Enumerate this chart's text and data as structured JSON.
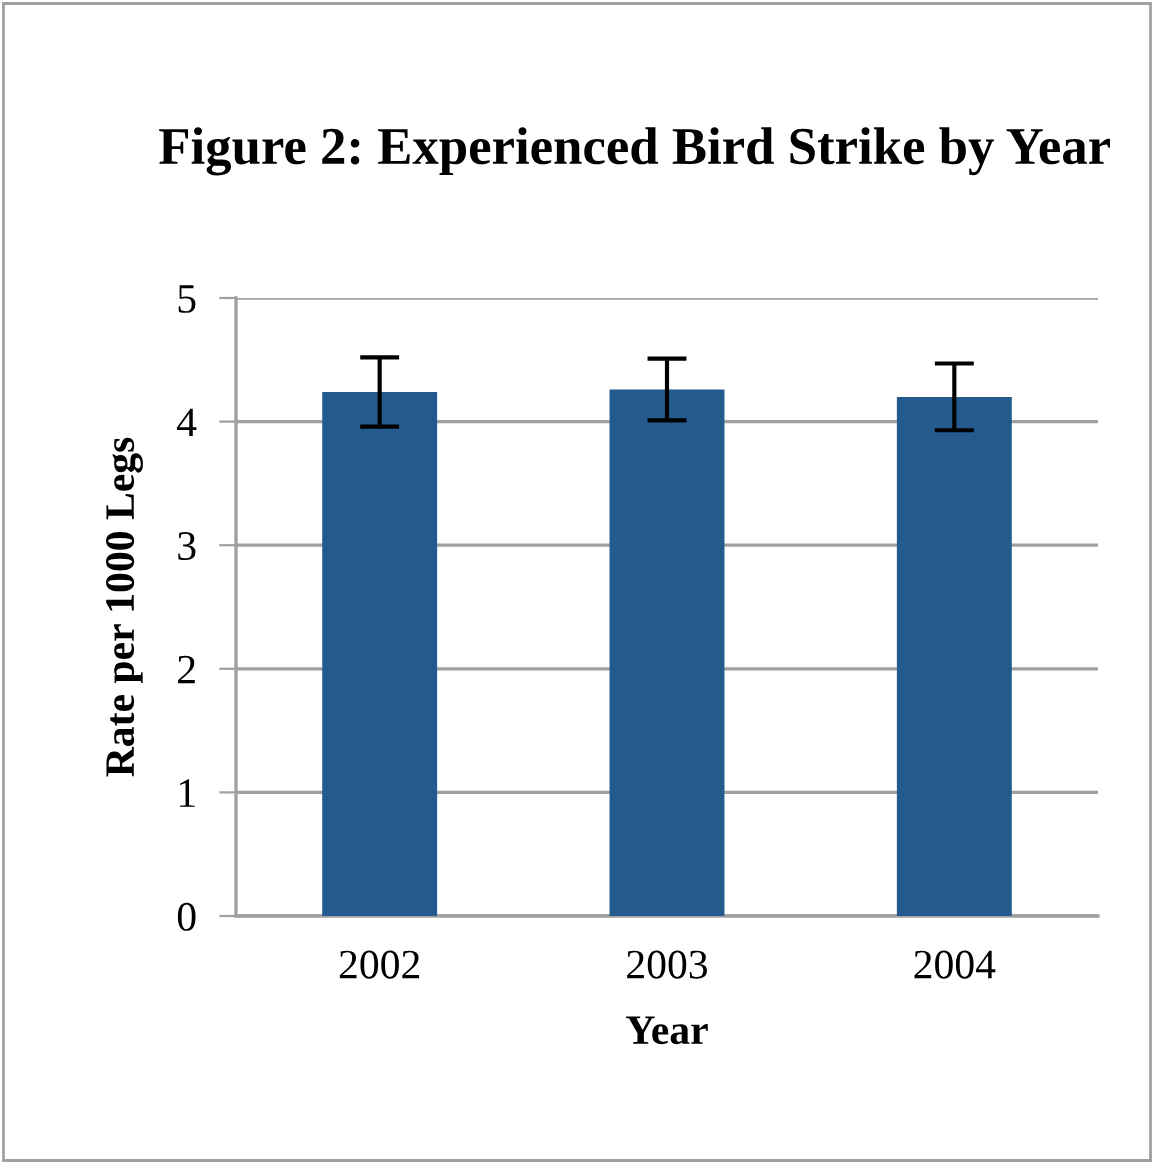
{
  "chart_data": {
    "type": "bar",
    "title": "Figure 2: Experienced Bird Strike by Year",
    "xlabel": "Year",
    "ylabel": "Rate per 1000 Legs",
    "categories": [
      "2002",
      "2003",
      "2004"
    ],
    "values": [
      4.24,
      4.26,
      4.2
    ],
    "errors": [
      0.28,
      0.25,
      0.27
    ],
    "color": "#255a8f",
    "ylim": [
      0,
      5
    ],
    "yticks": [
      0,
      1,
      2,
      3,
      4,
      5
    ],
    "grid": "y",
    "legend": false
  }
}
